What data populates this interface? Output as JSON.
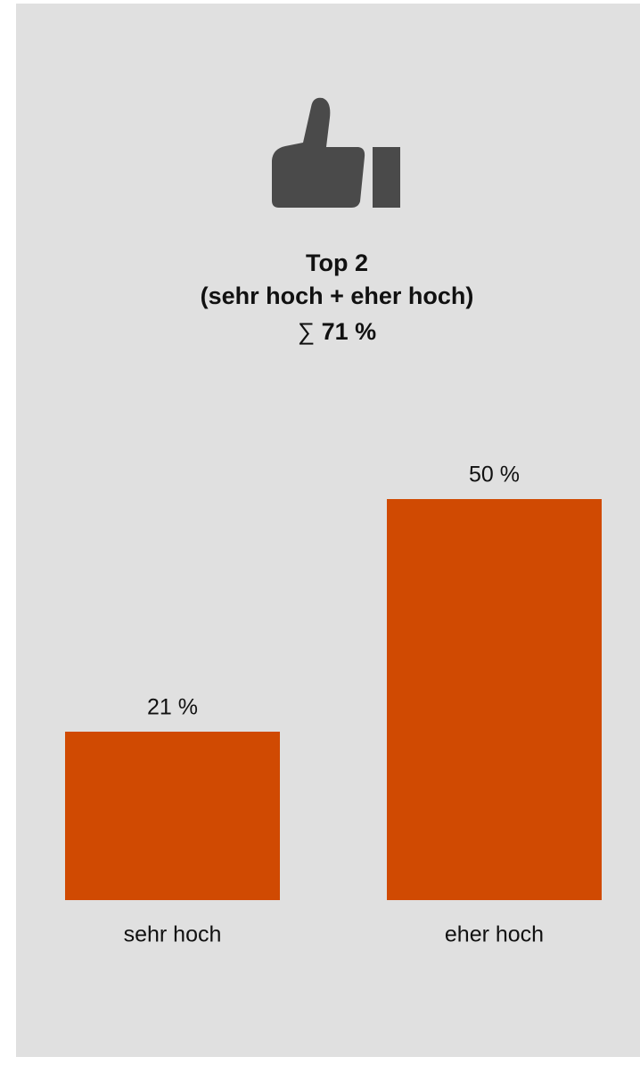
{
  "chart_data": {
    "type": "bar",
    "title": [
      "Top 2",
      "(sehr hoch + eher hoch)"
    ],
    "sum_symbol": "∑",
    "sum": "71 %",
    "categories": [
      "sehr hoch",
      "eher hoch"
    ],
    "values": [
      21,
      50
    ],
    "value_labels": [
      "21 %",
      "50 %"
    ],
    "color": "#d04a02"
  }
}
